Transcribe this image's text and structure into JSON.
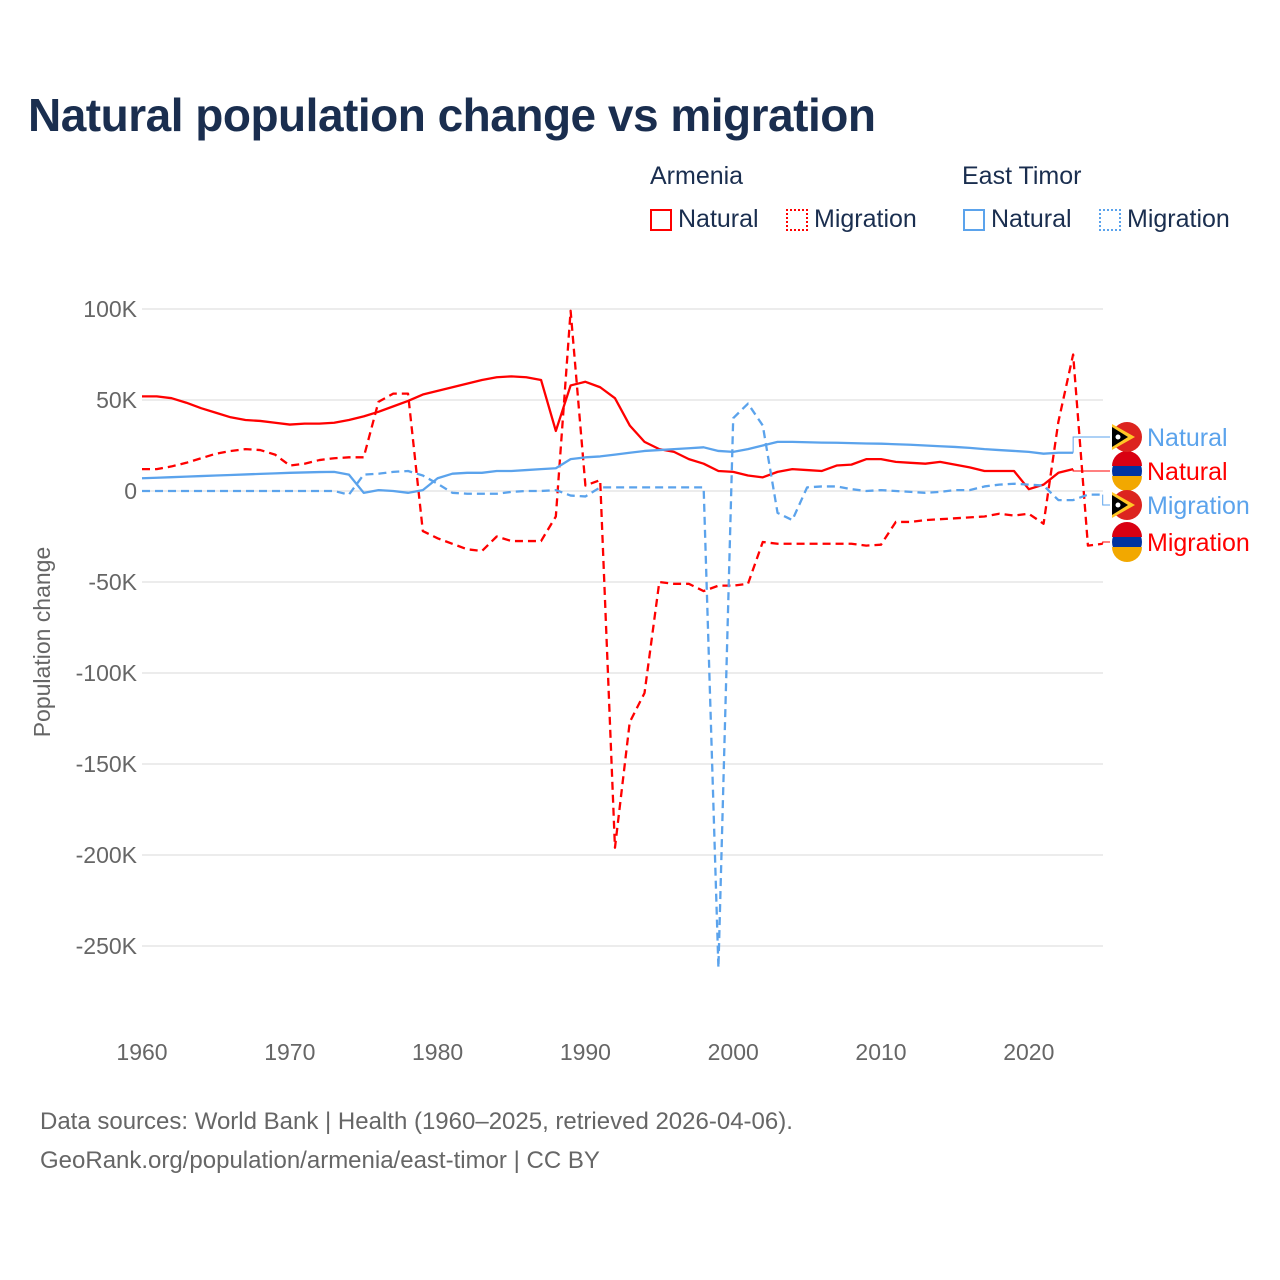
{
  "title": "Natural population change vs migration",
  "legend": {
    "groups": [
      {
        "name": "Armenia",
        "items": [
          "Natural",
          "Migration"
        ],
        "color": "#ff0000"
      },
      {
        "name": "East Timor",
        "items": [
          "Natural",
          "Migration"
        ],
        "color": "#5ba3ec"
      }
    ]
  },
  "source_line1": "Data sources: World Bank | Health (1960–2025, retrieved 2026-04-06).",
  "source_line2": "GeoRank.org/population/armenia/east-timor | CC BY",
  "chart_data": {
    "type": "line",
    "title": "Natural population change vs migration",
    "xlabel": "",
    "ylabel": "Population change",
    "xlim": [
      1960,
      2025
    ],
    "ylim": [
      -270000,
      100000
    ],
    "x_ticks": [
      "1960",
      "1970",
      "1980",
      "1990",
      "2000",
      "2010",
      "2020"
    ],
    "y_ticks": [
      {
        "v": 100000,
        "label": "100K"
      },
      {
        "v": 50000,
        "label": "50K"
      },
      {
        "v": 0,
        "label": "0"
      },
      {
        "v": -50000,
        "label": "-50K"
      },
      {
        "v": -100000,
        "label": "-100K"
      },
      {
        "v": -150000,
        "label": "-150K"
      },
      {
        "v": -200000,
        "label": "-200K"
      },
      {
        "v": -250000,
        "label": "-250K"
      }
    ],
    "grid": true,
    "series": [
      {
        "name": "Natural",
        "country": "Armenia",
        "color": "#ff0000",
        "dash": false,
        "start": 1960,
        "end_label": "Natural",
        "values_k": [
          52,
          52,
          51,
          48.5,
          45.5,
          43,
          40.5,
          39,
          38.5,
          37.5,
          36.5,
          37,
          37,
          37.5,
          39,
          41,
          43.5,
          46.5,
          49.5,
          53,
          55,
          57,
          59,
          61,
          62.5,
          63,
          62.5,
          61,
          33,
          58,
          60,
          57,
          51,
          36,
          27,
          23,
          21.5,
          17.5,
          15,
          11,
          10.5,
          8.5,
          7.5,
          10.5,
          12,
          11.5,
          11,
          14,
          14.5,
          17.5,
          17.5,
          16,
          15.5,
          15,
          16,
          14.5,
          13,
          11,
          11,
          11,
          1,
          3.5,
          10,
          12
        ]
      },
      {
        "name": "Migration",
        "country": "Armenia",
        "color": "#ff0000",
        "dash": true,
        "start": 1960,
        "end_label": "Migration",
        "values_k": [
          12,
          12,
          13.5,
          15.5,
          18,
          20.5,
          22,
          23,
          22.5,
          20,
          14,
          15,
          17,
          18,
          18.5,
          18.5,
          49,
          53.5,
          53.5,
          -22,
          -26,
          -29,
          -32,
          -33,
          -25,
          -27.5,
          -27.5,
          -27.5,
          -14,
          99,
          3,
          6,
          -196,
          -127,
          -111,
          -50,
          -51,
          -51,
          -55,
          -52,
          -52,
          -51,
          -28,
          -29,
          -29,
          -29,
          -29,
          -29,
          -29,
          -30,
          -29.5,
          -17,
          -17,
          -16,
          -15.5,
          -15,
          -14.5,
          -14,
          -12.5,
          -13.5,
          -12.5,
          -18,
          38,
          75,
          -30,
          -29
        ]
      },
      {
        "name": "Natural",
        "country": "East Timor",
        "color": "#5ba3ec",
        "dash": false,
        "start": 1960,
        "end_label": "Natural",
        "values_k": [
          7,
          7.3,
          7.6,
          7.9,
          8.2,
          8.5,
          8.8,
          9.1,
          9.4,
          9.7,
          10,
          10.2,
          10.4,
          10.5,
          9,
          -1,
          0.5,
          0,
          -1,
          0.5,
          7,
          9.5,
          10,
          10,
          11,
          11,
          11.5,
          12,
          12.5,
          17.5,
          18.5,
          19,
          20,
          21,
          22,
          22.5,
          23,
          23.5,
          24,
          22,
          21.5,
          23,
          25,
          27,
          27,
          26.8,
          26.6,
          26.5,
          26.3,
          26.1,
          26,
          25.7,
          25.4,
          25,
          24.6,
          24.2,
          23.7,
          23,
          22.5,
          22,
          21.5,
          20.5,
          21,
          21
        ]
      },
      {
        "name": "Migration",
        "country": "East Timor",
        "color": "#5ba3ec",
        "dash": true,
        "start": 1960,
        "end_label": "Migration",
        "values_k": [
          0,
          0,
          0,
          0,
          0,
          0,
          0,
          0,
          0,
          0,
          0,
          0,
          0,
          0,
          -2,
          9,
          9.5,
          10.5,
          11,
          8.5,
          4,
          -1,
          -1.5,
          -1.5,
          -1.5,
          -0.5,
          0,
          0,
          0.5,
          -2.5,
          -3,
          2,
          2,
          2,
          2,
          2,
          2,
          2,
          2,
          -262,
          40,
          48,
          36,
          -12,
          -16,
          2,
          2.5,
          2.5,
          1,
          0,
          0.5,
          0,
          -0.5,
          -1,
          -0.5,
          0.5,
          0.5,
          2.5,
          3.5,
          4,
          3.5,
          3,
          -5,
          -5,
          -2,
          -2
        ]
      }
    ]
  }
}
